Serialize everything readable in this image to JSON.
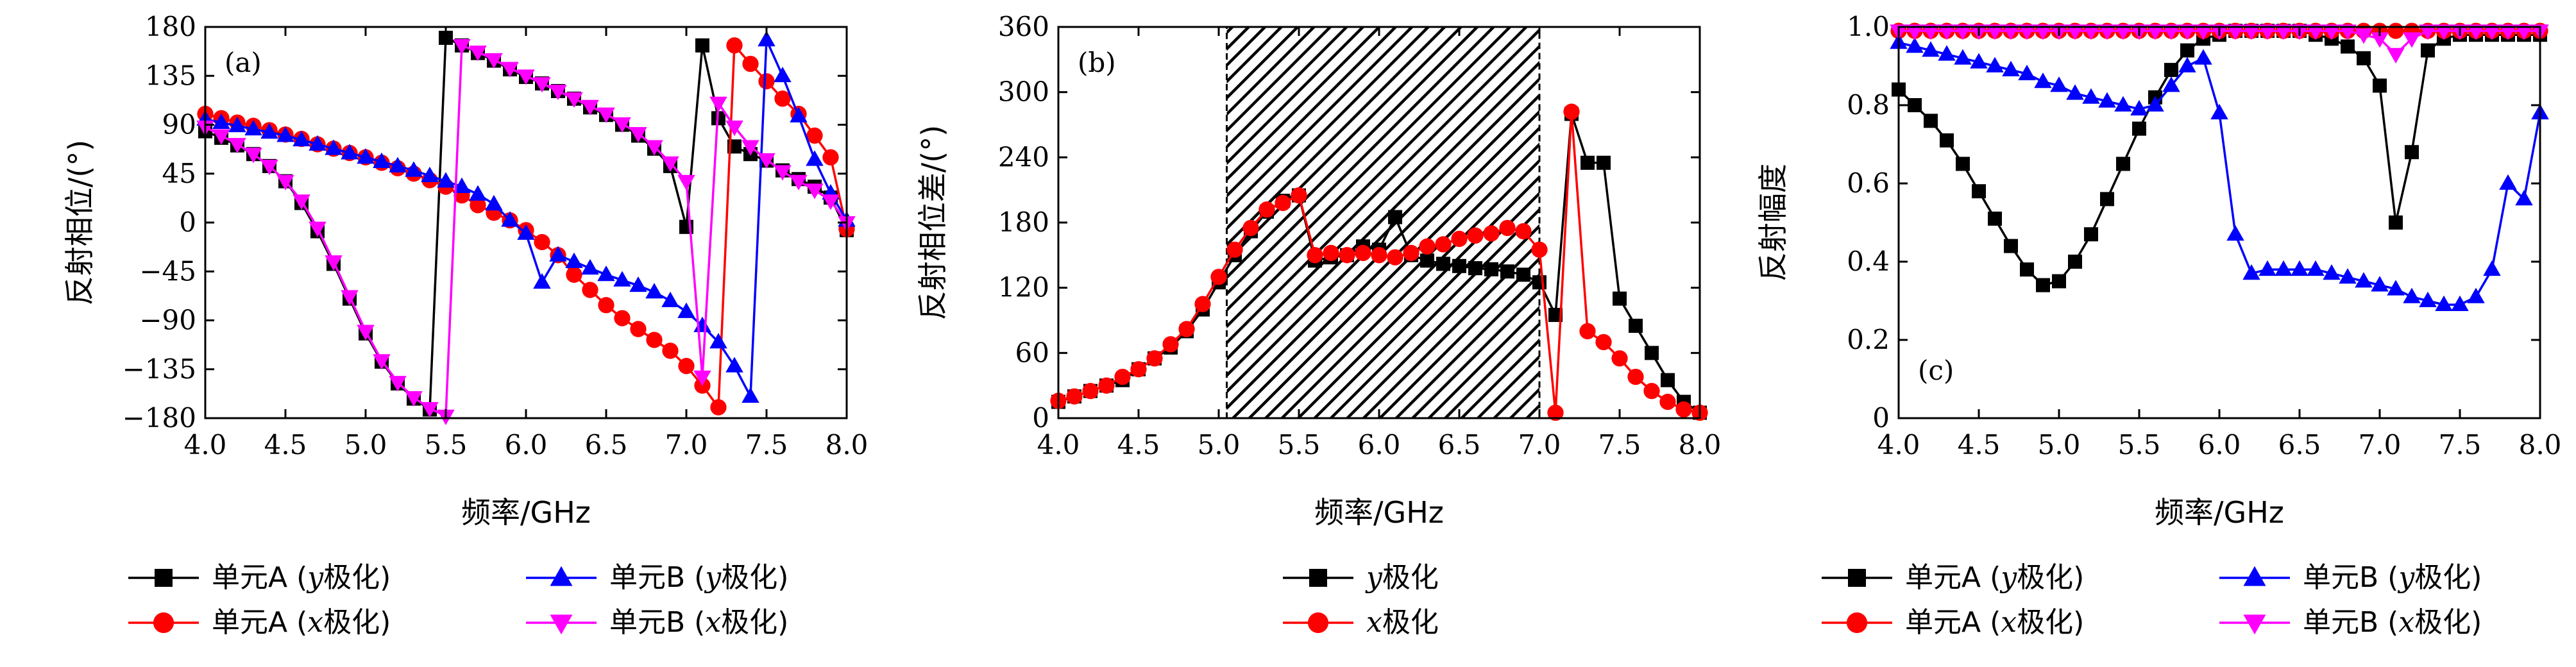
{
  "chart_data": [
    {
      "type": "line",
      "panel_label": "(a)",
      "xlabel": "频率/GHz",
      "ylabel": "反射相位/(°)",
      "xlim": [
        4.0,
        8.0
      ],
      "ylim": [
        -180,
        180
      ],
      "xticks": [
        "4.0",
        "4.5",
        "5.0",
        "5.5",
        "6.0",
        "6.5",
        "7.0",
        "7.5",
        "8.0"
      ],
      "yticks": [
        "180",
        "135",
        "90",
        "45",
        "0",
        "−45",
        "−90",
        "−135",
        "−180"
      ],
      "grid": false,
      "legend_position": "bottom",
      "legend": [
        {
          "prefix": "单元A (",
          "var": "y",
          "suffix": "极化)"
        },
        {
          "prefix": "单元A (",
          "var": "x",
          "suffix": "极化)"
        },
        {
          "prefix": "单元B (",
          "var": "y",
          "suffix": "极化)"
        },
        {
          "prefix": "单元B (",
          "var": "x",
          "suffix": "极化)"
        }
      ],
      "series": [
        {
          "color": "#000000",
          "marker": "square",
          "x": [
            4.0,
            4.1,
            4.2,
            4.3,
            4.4,
            4.5,
            4.6,
            4.7,
            4.8,
            4.9,
            5.0,
            5.1,
            5.2,
            5.3,
            5.4,
            5.5,
            5.6,
            5.7,
            5.8,
            5.9,
            6.0,
            6.1,
            6.2,
            6.3,
            6.4,
            6.5,
            6.6,
            6.7,
            6.8,
            6.9,
            7.0,
            7.1,
            7.2,
            7.3,
            7.4,
            7.5,
            7.6,
            7.7,
            7.8,
            7.9,
            8.0
          ],
          "y": [
            84,
            78,
            71,
            63,
            52,
            38,
            18,
            -8,
            -38,
            -70,
            -102,
            -128,
            -148,
            -162,
            -172,
            170,
            163,
            156,
            149,
            141,
            134,
            128,
            121,
            114,
            106,
            99,
            90,
            80,
            68,
            52,
            -4,
            163,
            96,
            70,
            63,
            57,
            48,
            40,
            33,
            23,
            -7
          ]
        },
        {
          "color": "#ff0000",
          "marker": "circle",
          "x": [
            4.0,
            4.1,
            4.2,
            4.3,
            4.4,
            4.5,
            4.6,
            4.7,
            4.8,
            4.9,
            5.0,
            5.1,
            5.2,
            5.3,
            5.4,
            5.5,
            5.6,
            5.7,
            5.8,
            5.9,
            6.0,
            6.1,
            6.2,
            6.3,
            6.4,
            6.5,
            6.6,
            6.7,
            6.8,
            6.9,
            7.0,
            7.1,
            7.2,
            7.3,
            7.4,
            7.5,
            7.6,
            7.7,
            7.8,
            7.9,
            8.0
          ],
          "y": [
            100,
            96,
            92,
            89,
            85,
            81,
            77,
            72,
            68,
            64,
            60,
            55,
            50,
            45,
            39,
            33,
            25,
            16,
            9,
            2,
            -7,
            -18,
            -30,
            -48,
            -62,
            -76,
            -88,
            -98,
            -108,
            -118,
            -132,
            -150,
            -170,
            163,
            146,
            130,
            114,
            100,
            80,
            60,
            -6
          ]
        },
        {
          "color": "#0000ff",
          "marker": "triangle-up",
          "x": [
            4.0,
            4.1,
            4.2,
            4.3,
            4.4,
            4.5,
            4.6,
            4.7,
            4.8,
            4.9,
            5.0,
            5.1,
            5.2,
            5.3,
            5.4,
            5.5,
            5.6,
            5.7,
            5.8,
            5.9,
            6.0,
            6.1,
            6.2,
            6.3,
            6.4,
            6.5,
            6.6,
            6.7,
            6.8,
            6.9,
            7.0,
            7.1,
            7.2,
            7.3,
            7.4,
            7.5,
            7.6,
            7.7,
            7.8,
            7.9,
            8.0
          ],
          "y": [
            95,
            92,
            89,
            86,
            83,
            80,
            76,
            72,
            68,
            64,
            60,
            56,
            52,
            48,
            43,
            38,
            33,
            26,
            17,
            2,
            -10,
            -55,
            -30,
            -36,
            -42,
            -48,
            -53,
            -58,
            -64,
            -72,
            -82,
            -95,
            -110,
            -132,
            -160,
            168,
            135,
            98,
            58,
            27,
            2
          ]
        },
        {
          "color": "#ff00ff",
          "marker": "triangle-down",
          "x": [
            4.0,
            4.1,
            4.2,
            4.3,
            4.4,
            4.5,
            4.6,
            4.7,
            4.8,
            4.9,
            5.0,
            5.1,
            5.2,
            5.3,
            5.4,
            5.5,
            5.6,
            5.7,
            5.8,
            5.9,
            6.0,
            6.1,
            6.2,
            6.3,
            6.4,
            6.5,
            6.6,
            6.7,
            6.8,
            6.9,
            7.0,
            7.1,
            7.2,
            7.3,
            7.4,
            7.5,
            7.6,
            7.7,
            7.8,
            7.9,
            8.0
          ],
          "y": [
            88,
            80,
            72,
            63,
            52,
            38,
            20,
            -5,
            -36,
            -68,
            -100,
            -127,
            -147,
            -161,
            -171,
            -178,
            163,
            157,
            150,
            142,
            135,
            128,
            121,
            114,
            107,
            100,
            91,
            82,
            70,
            55,
            38,
            -142,
            110,
            88,
            70,
            58,
            47,
            38,
            30,
            20,
            0
          ]
        }
      ]
    },
    {
      "type": "line",
      "panel_label": "(b)",
      "xlabel": "频率/GHz",
      "ylabel": "反射相位差/(°)",
      "xlim": [
        4.0,
        8.0
      ],
      "ylim": [
        0,
        360
      ],
      "xticks": [
        "4.0",
        "4.5",
        "5.0",
        "5.5",
        "6.0",
        "6.5",
        "7.0",
        "7.5",
        "8.0"
      ],
      "yticks": [
        "360",
        "300",
        "240",
        "180",
        "120",
        "60",
        "0"
      ],
      "grid": false,
      "shaded_band_x": [
        5.05,
        7.0
      ],
      "legend_position": "bottom",
      "legend": [
        {
          "prefix": "",
          "var": "y",
          "suffix": "极化"
        },
        {
          "prefix": "",
          "var": "x",
          "suffix": "极化"
        }
      ],
      "series": [
        {
          "color": "#000000",
          "marker": "square",
          "x": [
            4.0,
            4.1,
            4.2,
            4.3,
            4.4,
            4.5,
            4.6,
            4.7,
            4.8,
            4.9,
            5.0,
            5.1,
            5.2,
            5.3,
            5.4,
            5.5,
            5.6,
            5.7,
            5.8,
            5.9,
            6.0,
            6.1,
            6.2,
            6.3,
            6.4,
            6.5,
            6.6,
            6.7,
            6.8,
            6.9,
            7.0,
            7.1,
            7.2,
            7.3,
            7.4,
            7.5,
            7.6,
            7.7,
            7.8,
            7.9,
            8.0
          ],
          "y": [
            15,
            20,
            25,
            30,
            35,
            45,
            55,
            65,
            80,
            100,
            125,
            150,
            172,
            190,
            200,
            205,
            145,
            148,
            150,
            158,
            155,
            185,
            150,
            145,
            142,
            140,
            138,
            137,
            135,
            132,
            125,
            95,
            280,
            235,
            235,
            110,
            85,
            60,
            35,
            15,
            5
          ]
        },
        {
          "color": "#ff0000",
          "marker": "circle",
          "x": [
            4.0,
            4.1,
            4.2,
            4.3,
            4.4,
            4.5,
            4.6,
            4.7,
            4.8,
            4.9,
            5.0,
            5.1,
            5.2,
            5.3,
            5.4,
            5.5,
            5.6,
            5.7,
            5.8,
            5.9,
            6.0,
            6.1,
            6.2,
            6.3,
            6.4,
            6.5,
            6.6,
            6.7,
            6.8,
            6.9,
            7.0,
            7.1,
            7.2,
            7.3,
            7.4,
            7.5,
            7.6,
            7.7,
            7.8,
            7.9,
            8.0
          ],
          "y": [
            16,
            20,
            25,
            30,
            38,
            45,
            55,
            68,
            82,
            105,
            130,
            155,
            175,
            192,
            198,
            205,
            150,
            152,
            150,
            152,
            150,
            148,
            152,
            158,
            160,
            165,
            168,
            170,
            175,
            172,
            155,
            5,
            282,
            80,
            70,
            55,
            38,
            25,
            15,
            8,
            5
          ]
        }
      ]
    },
    {
      "type": "line",
      "panel_label": "(c)",
      "xlabel": "频率/GHz",
      "ylabel": "反射幅度",
      "xlim": [
        4.0,
        8.0
      ],
      "ylim": [
        0,
        1.0
      ],
      "xticks": [
        "4.0",
        "4.5",
        "5.0",
        "5.5",
        "6.0",
        "6.5",
        "7.0",
        "7.5",
        "8.0"
      ],
      "yticks": [
        "1.0",
        "0.8",
        "0.6",
        "0.4",
        "0.2",
        "0"
      ],
      "grid": false,
      "legend_position": "bottom",
      "legend": [
        {
          "prefix": "单元A (",
          "var": "y",
          "suffix": "极化)"
        },
        {
          "prefix": "单元A (",
          "var": "x",
          "suffix": "极化)"
        },
        {
          "prefix": "单元B (",
          "var": "y",
          "suffix": "极化)"
        },
        {
          "prefix": "单元B (",
          "var": "x",
          "suffix": "极化)"
        }
      ],
      "series": [
        {
          "color": "#000000",
          "marker": "square",
          "x": [
            4.0,
            4.1,
            4.2,
            4.3,
            4.4,
            4.5,
            4.6,
            4.7,
            4.8,
            4.9,
            5.0,
            5.1,
            5.2,
            5.3,
            5.4,
            5.5,
            5.6,
            5.7,
            5.8,
            5.9,
            6.0,
            6.1,
            6.2,
            6.3,
            6.4,
            6.5,
            6.6,
            6.7,
            6.8,
            6.9,
            7.0,
            7.1,
            7.2,
            7.3,
            7.4,
            7.5,
            7.6,
            7.7,
            7.8,
            7.9,
            8.0
          ],
          "y": [
            0.84,
            0.8,
            0.76,
            0.71,
            0.65,
            0.58,
            0.51,
            0.44,
            0.38,
            0.34,
            0.35,
            0.4,
            0.47,
            0.56,
            0.65,
            0.74,
            0.82,
            0.89,
            0.94,
            0.97,
            0.98,
            0.99,
            0.99,
            0.99,
            0.99,
            0.99,
            0.98,
            0.97,
            0.95,
            0.92,
            0.85,
            0.5,
            0.68,
            0.94,
            0.97,
            0.98,
            0.98,
            0.98,
            0.98,
            0.98,
            0.98
          ]
        },
        {
          "color": "#ff0000",
          "marker": "circle",
          "x": [
            4.0,
            4.1,
            4.2,
            4.3,
            4.4,
            4.5,
            4.6,
            4.7,
            4.8,
            4.9,
            5.0,
            5.1,
            5.2,
            5.3,
            5.4,
            5.5,
            5.6,
            5.7,
            5.8,
            5.9,
            6.0,
            6.1,
            6.2,
            6.3,
            6.4,
            6.5,
            6.6,
            6.7,
            6.8,
            6.9,
            7.0,
            7.1,
            7.2,
            7.3,
            7.4,
            7.5,
            7.6,
            7.7,
            7.8,
            7.9,
            8.0
          ],
          "y": [
            0.99,
            0.99,
            0.99,
            0.99,
            0.99,
            0.99,
            0.99,
            0.99,
            0.99,
            0.99,
            0.99,
            0.99,
            0.99,
            0.99,
            0.99,
            0.99,
            0.99,
            0.99,
            0.99,
            0.99,
            0.99,
            0.99,
            0.99,
            0.99,
            0.99,
            0.99,
            0.99,
            0.99,
            0.99,
            0.99,
            0.99,
            0.99,
            0.99,
            0.99,
            0.99,
            0.99,
            0.99,
            0.99,
            0.99,
            0.99,
            0.99
          ]
        },
        {
          "color": "#0000ff",
          "marker": "triangle-up",
          "x": [
            4.0,
            4.1,
            4.2,
            4.3,
            4.4,
            4.5,
            4.6,
            4.7,
            4.8,
            4.9,
            5.0,
            5.1,
            5.2,
            5.3,
            5.4,
            5.5,
            5.6,
            5.7,
            5.8,
            5.9,
            6.0,
            6.1,
            6.2,
            6.3,
            6.4,
            6.5,
            6.6,
            6.7,
            6.8,
            6.9,
            7.0,
            7.1,
            7.2,
            7.3,
            7.4,
            7.5,
            7.6,
            7.7,
            7.8,
            7.9,
            8.0
          ],
          "y": [
            0.96,
            0.95,
            0.94,
            0.93,
            0.92,
            0.91,
            0.9,
            0.89,
            0.88,
            0.86,
            0.85,
            0.83,
            0.82,
            0.81,
            0.8,
            0.79,
            0.8,
            0.85,
            0.9,
            0.92,
            0.78,
            0.47,
            0.37,
            0.38,
            0.38,
            0.38,
            0.38,
            0.37,
            0.36,
            0.35,
            0.34,
            0.33,
            0.31,
            0.3,
            0.29,
            0.29,
            0.31,
            0.38,
            0.6,
            0.56,
            0.78
          ]
        },
        {
          "color": "#ff00ff",
          "marker": "triangle-down",
          "x": [
            4.0,
            4.1,
            4.2,
            4.3,
            4.4,
            4.5,
            4.6,
            4.7,
            4.8,
            4.9,
            5.0,
            5.1,
            5.2,
            5.3,
            5.4,
            5.5,
            5.6,
            5.7,
            5.8,
            5.9,
            6.0,
            6.1,
            6.2,
            6.3,
            6.4,
            6.5,
            6.6,
            6.7,
            6.8,
            6.9,
            7.0,
            7.1,
            7.2,
            7.3,
            7.4,
            7.5,
            7.6,
            7.7,
            7.8,
            7.9,
            8.0
          ],
          "y": [
            0.99,
            0.99,
            0.99,
            0.99,
            0.99,
            0.99,
            0.99,
            0.99,
            0.99,
            0.99,
            0.99,
            0.99,
            0.99,
            0.99,
            0.99,
            0.99,
            0.99,
            0.99,
            0.99,
            0.99,
            0.99,
            0.99,
            0.99,
            0.99,
            0.99,
            0.99,
            0.99,
            0.99,
            0.99,
            0.98,
            0.97,
            0.93,
            0.97,
            0.99,
            0.99,
            0.99,
            0.99,
            0.99,
            0.99,
            0.99,
            0.99
          ]
        }
      ]
    }
  ]
}
